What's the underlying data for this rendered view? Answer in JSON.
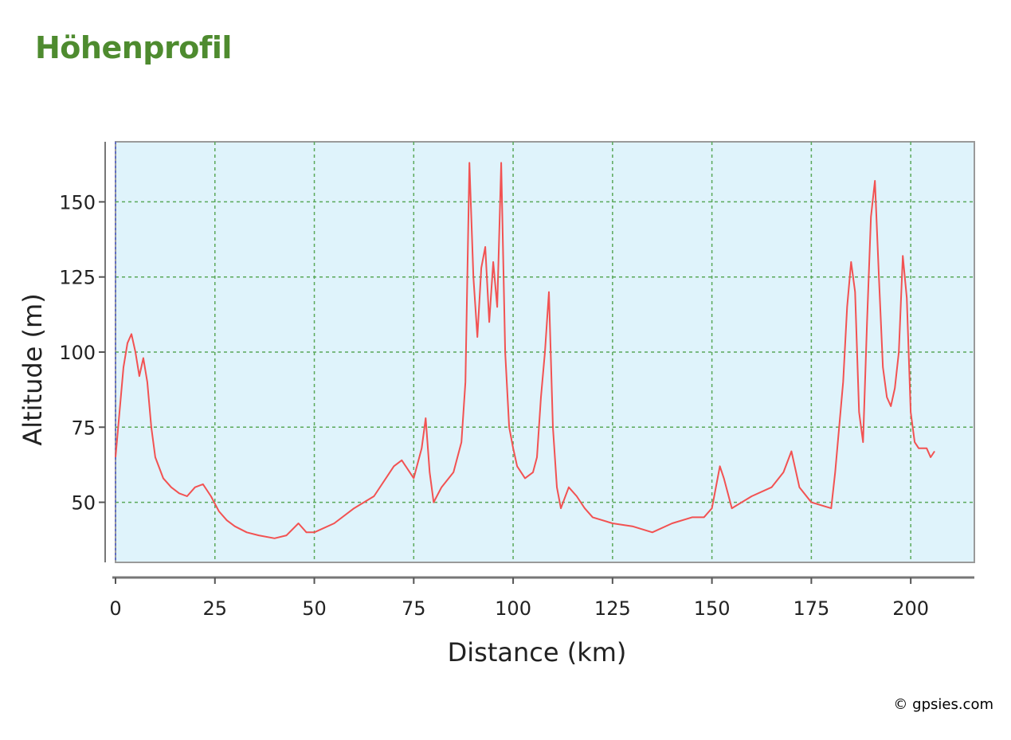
{
  "title": "Höhenprofil",
  "copyright": "© gpsies.com",
  "colors": {
    "title": "#4e8b2f",
    "plot_bg": "#dff3fb",
    "grid": "#5aa85a",
    "line": "#f25252"
  },
  "chart_data": {
    "type": "line",
    "xlabel": "Distance (km)",
    "ylabel": "Altitude (m)",
    "xlim": [
      0,
      216
    ],
    "ylim": [
      30,
      170
    ],
    "xticks": [
      0,
      25,
      50,
      75,
      100,
      125,
      150,
      175,
      200
    ],
    "yticks": [
      50,
      75,
      100,
      125,
      150
    ],
    "grid": true,
    "series": [
      {
        "x": [
          0,
          1,
          2,
          3,
          4,
          5,
          6,
          7,
          8,
          9,
          10,
          12,
          14,
          16,
          18,
          20,
          22,
          24,
          26,
          28,
          30,
          33,
          36,
          40,
          43,
          46,
          48,
          50,
          55,
          60,
          65,
          70,
          72,
          75,
          77,
          78,
          79,
          80,
          82,
          85,
          87,
          88,
          89,
          90,
          91,
          92,
          93,
          94,
          95,
          96,
          97,
          98,
          99,
          100,
          101,
          103,
          105,
          106,
          107,
          108,
          109,
          110,
          111,
          112,
          114,
          116,
          118,
          120,
          125,
          130,
          135,
          140,
          145,
          148,
          150,
          151,
          152,
          153,
          155,
          160,
          165,
          168,
          170,
          172,
          175,
          180,
          181,
          182,
          183,
          184,
          185,
          186,
          187,
          188,
          189,
          190,
          191,
          192,
          193,
          194,
          195,
          196,
          197,
          198,
          199,
          200,
          201,
          202,
          203,
          204,
          205,
          206
        ],
        "y": [
          65,
          80,
          95,
          103,
          106,
          100,
          92,
          98,
          90,
          75,
          65,
          58,
          55,
          53,
          52,
          55,
          56,
          52,
          47,
          44,
          42,
          40,
          39,
          38,
          39,
          43,
          40,
          40,
          43,
          48,
          52,
          62,
          64,
          58,
          68,
          78,
          60,
          50,
          55,
          60,
          70,
          90,
          163,
          125,
          105,
          128,
          135,
          110,
          130,
          115,
          163,
          100,
          75,
          68,
          62,
          58,
          60,
          65,
          85,
          100,
          120,
          75,
          55,
          48,
          55,
          52,
          48,
          45,
          43,
          42,
          40,
          43,
          45,
          45,
          48,
          55,
          62,
          58,
          48,
          52,
          55,
          60,
          67,
          55,
          50,
          48,
          60,
          75,
          90,
          115,
          130,
          120,
          80,
          70,
          110,
          145,
          157,
          125,
          95,
          85,
          82,
          88,
          100,
          132,
          118,
          80,
          70,
          68,
          68,
          68,
          65,
          67
        ]
      }
    ]
  }
}
